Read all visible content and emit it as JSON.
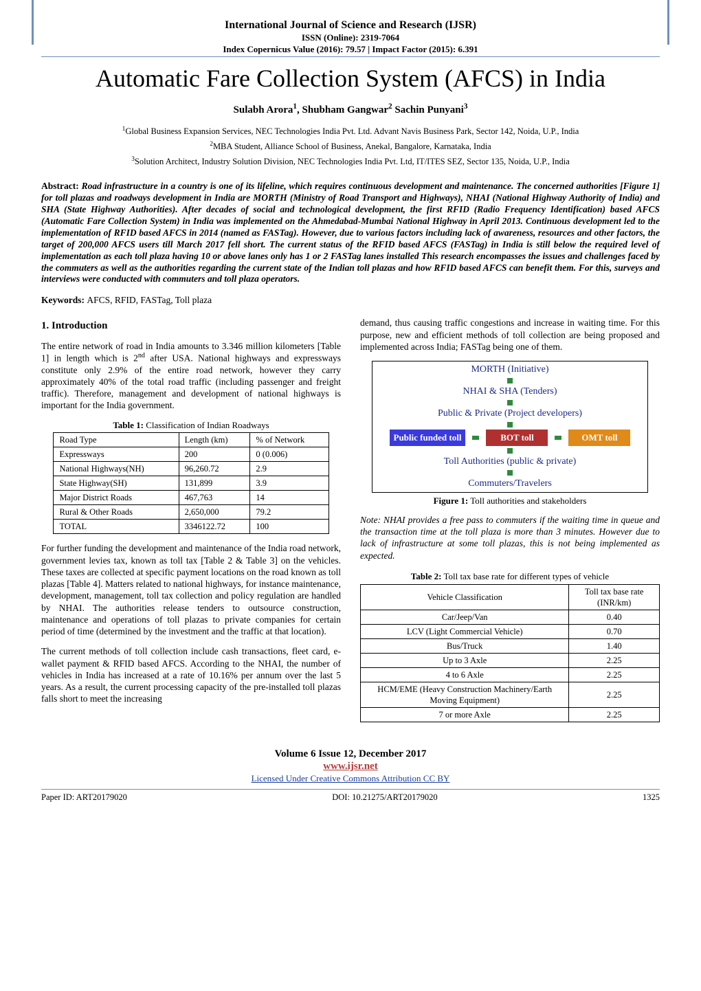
{
  "header": {
    "journal_title": "International Journal of Science and Research (IJSR)",
    "issn": "ISSN (Online): 2319-7064",
    "index_line": "Index Copernicus Value (2016): 79.57 | Impact Factor (2015): 6.391"
  },
  "title": "Automatic Fare Collection System (AFCS) in India",
  "authors_html": "Sulabh Arora<sup>1</sup>, Shubham Gangwar<sup>2</sup> Sachin Punyani<sup>3</sup>",
  "affiliations": [
    "<sup>1</sup>Global Business Expansion Services, NEC Technologies India Pvt. Ltd. Advant Navis Business Park, Sector 142, Noida, U.P., India",
    "<sup>2</sup>MBA Student, Alliance School of Business, Anekal, Bangalore, Karnataka, India",
    "<sup>3</sup>Solution Architect, Industry Solution Division, NEC Technologies India Pvt. Ltd, IT/ITES SEZ, Sector 135, Noida, U.P., India"
  ],
  "abstract": {
    "label": "Abstract: ",
    "body": "Road infrastructure in a country is one of its lifeline, which requires continuous development and maintenance. The concerned authorities [Figure 1] for toll plazas and roadways development in India are MORTH (Ministry of Road Transport and Highways), NHAI (National Highway Authority of India) and SHA (State Highway Authorities). After decades of social and technological development, the first RFID (Radio Frequency Identification) based AFCS (Automatic Fare Collection System) in India was implemented on the Ahmedabad-Mumbai National Highway in April 2013. Continuous development led to the implementation of RFID based AFCS in 2014 (named as FASTag). However, due to various factors including lack of awareness, resources and other factors, the target of 200,000 AFCS users till March 2017 fell short. The current status of the RFID based AFCS (FASTag) in India is still below the required level of implementation as each toll plaza having 10 or above lanes only has 1 or 2 FASTag lanes installed This research encompasses the issues and challenges faced by the commuters as well as the authorities regarding the current state of the Indian toll plazas and how RFID based AFCS can benefit them. For this, surveys and interviews were conducted with commuters and toll plaza operators."
  },
  "keywords": {
    "label": "Keywords: ",
    "text": "AFCS, RFID, FASTag, Toll plaza"
  },
  "section1": {
    "heading": "1.  Introduction",
    "p1": "The entire network of road in India amounts to 3.346 million kilometers [Table 1] in length which is 2<sup>nd</sup> after USA. National highways and expressways constitute only 2.9% of the entire road network, however they carry approximately 40% of the total road traffic (including passenger and freight traffic). Therefore, management and development of national highways is important for the India government.",
    "p2": "For further funding the development and maintenance of the India road network, government levies tax, known as toll tax [Table 2 & Table 3] on the vehicles. These taxes are collected at specific payment locations on the road known as toll plazas [Table 4]. Matters related to national highways, for instance maintenance, development, management, toll tax collection and policy regulation are handled by NHAI. The authorities release tenders to outsource construction, maintenance and operations of toll plazas to private companies for certain period of time (determined by the investment and the traffic at that location).",
    "p3": "The current methods of toll collection include cash transactions, fleet card, e-wallet payment & RFID based AFCS. According to the NHAI, the number of vehicles in India has increased at a rate of 10.16% per annum over the last 5 years. As a result, the current processing capacity of the pre-installed toll plazas falls short to meet the increasing",
    "p4": "demand, thus causing traffic congestions and increase in waiting time. For this purpose, new and efficient methods of toll collection are being proposed and implemented across India; FASTag being one of them."
  },
  "table1": {
    "caption_bold": "Table 1:",
    "caption_rest": " Classification of Indian Roadways",
    "columns": [
      "Road Type",
      "Length (km)",
      "% of Network"
    ],
    "rows": [
      [
        "Expressways",
        "200",
        "0 (0.006)"
      ],
      [
        "National Highways(NH)",
        "96,260.72",
        "2.9"
      ],
      [
        "State Highway(SH)",
        "131,899",
        "3.9"
      ],
      [
        "Major District Roads",
        "467,763",
        "14"
      ],
      [
        "Rural & Other Roads",
        "2,650,000",
        "79.2"
      ],
      [
        "TOTAL",
        "3346122.72",
        "100"
      ]
    ]
  },
  "figure1": {
    "rows": [
      "MORTH (Initiative)",
      "NHAI & SHA (Tenders)",
      "Public & Private (Project developers)"
    ],
    "boxes": [
      {
        "label": "Public funded toll",
        "color": "#3a3adf"
      },
      {
        "label": "BOT toll",
        "color": "#b03030"
      },
      {
        "label": "OMT toll",
        "color": "#e08a1a"
      }
    ],
    "rows_bottom": [
      "Toll Authorities (public & private)",
      "Commuters/Travelers"
    ],
    "caption_bold": "Figure 1:",
    "caption_rest": " Toll authorities and stakeholders",
    "connector_color": "#2e8b3c",
    "text_color": "#1a2a8a",
    "border_color": "#000000"
  },
  "note": "Note: NHAI provides a free pass to commuters if the waiting time in queue and the transaction time at the toll plaza is more than 3 minutes. However due to lack of infrastructure at some toll plazas, this is not being implemented as expected.",
  "table2": {
    "caption_bold": "Table 2:",
    "caption_rest": " Toll tax base rate for different types of vehicle",
    "columns": [
      "Vehicle Classification",
      "Toll tax base rate (INR/km)"
    ],
    "rows": [
      [
        "Car/Jeep/Van",
        "0.40"
      ],
      [
        "LCV (Light Commercial Vehicle)",
        "0.70"
      ],
      [
        "Bus/Truck",
        "1.40"
      ],
      [
        "Up to 3 Axle",
        "2.25"
      ],
      [
        "4 to 6 Axle",
        "2.25"
      ],
      [
        "HCM/EME (Heavy Construction Machinery/Earth Moving Equipment)",
        "2.25"
      ],
      [
        "7 or more Axle",
        "2.25"
      ]
    ]
  },
  "footer": {
    "volume": "Volume 6 Issue 12, December 2017",
    "url": "www.ijsr.net",
    "license": "Licensed Under Creative Commons Attribution CC BY",
    "paper_id": "Paper ID: ART20179020",
    "doi": "DOI: 10.21275/ART20179020",
    "page": "1325"
  },
  "colors": {
    "rule": "#6d8fbf",
    "url": "#b43a3a",
    "link": "#1a3e9e"
  }
}
